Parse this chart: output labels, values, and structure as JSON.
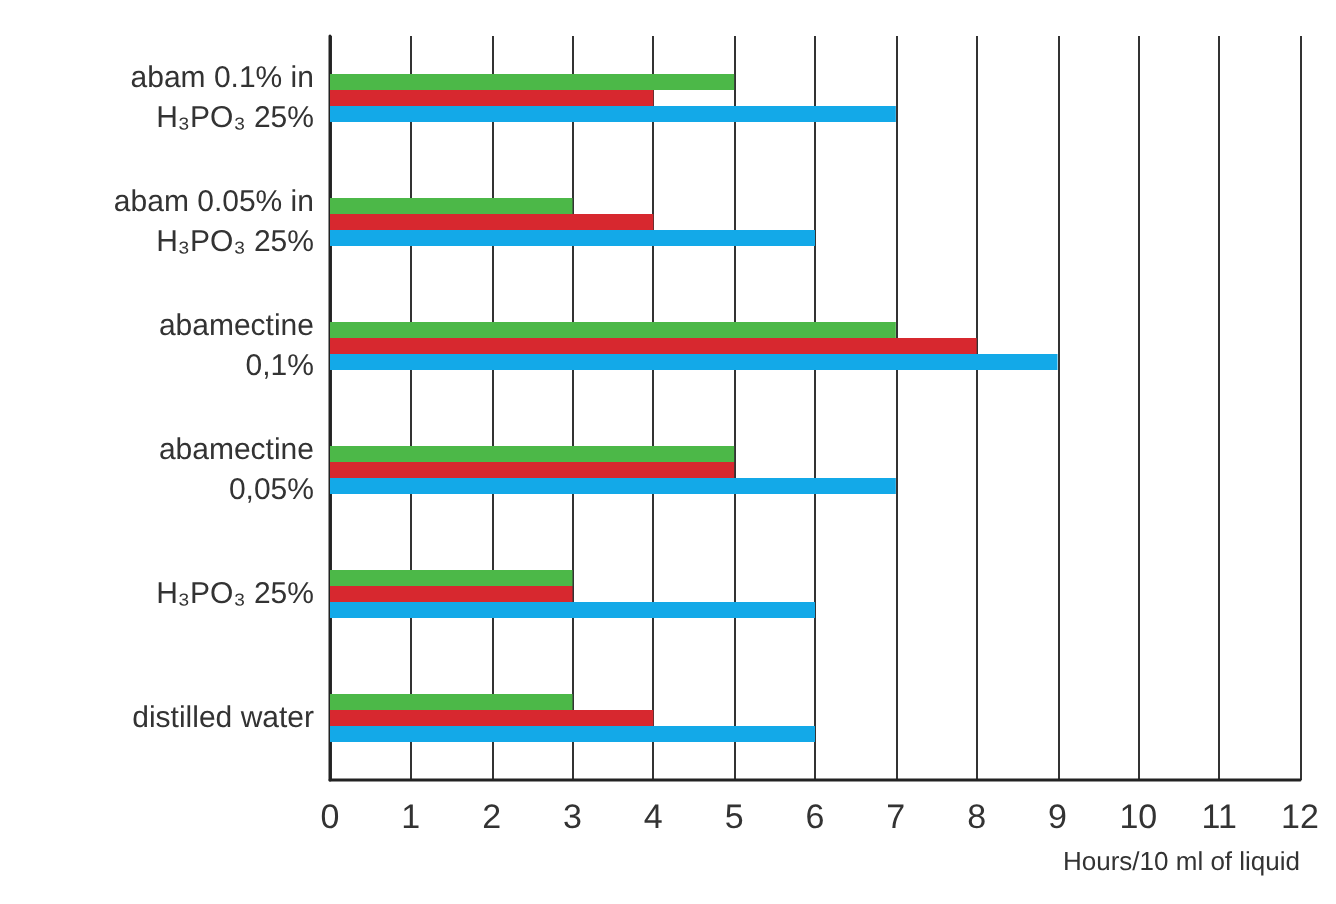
{
  "chart_data": {
    "type": "bar",
    "orientation": "horizontal",
    "xlabel": "Hours/10 ml of liquid",
    "categories": [
      "abam 0.1% in H₃PO₃ 25%",
      "abam 0.05% in H₃PO₃ 25%",
      "abamectine 0,1%",
      "abamectine 0,05%",
      "H₃PO₃ 25%",
      "distilled water"
    ],
    "series": [
      {
        "color": "#4cb848",
        "values": [
          5,
          3,
          7,
          5,
          3,
          3
        ]
      },
      {
        "color": "#d7282f",
        "values": [
          4,
          4,
          8,
          5,
          3,
          4
        ]
      },
      {
        "color": "#13a9e8",
        "values": [
          7,
          6,
          9,
          7,
          6,
          6
        ]
      }
    ],
    "xlim": [
      0,
      12
    ],
    "xticks": [
      0,
      1,
      2,
      3,
      4,
      5,
      6,
      7,
      8,
      9,
      10,
      11,
      12
    ],
    "grid": "x"
  }
}
